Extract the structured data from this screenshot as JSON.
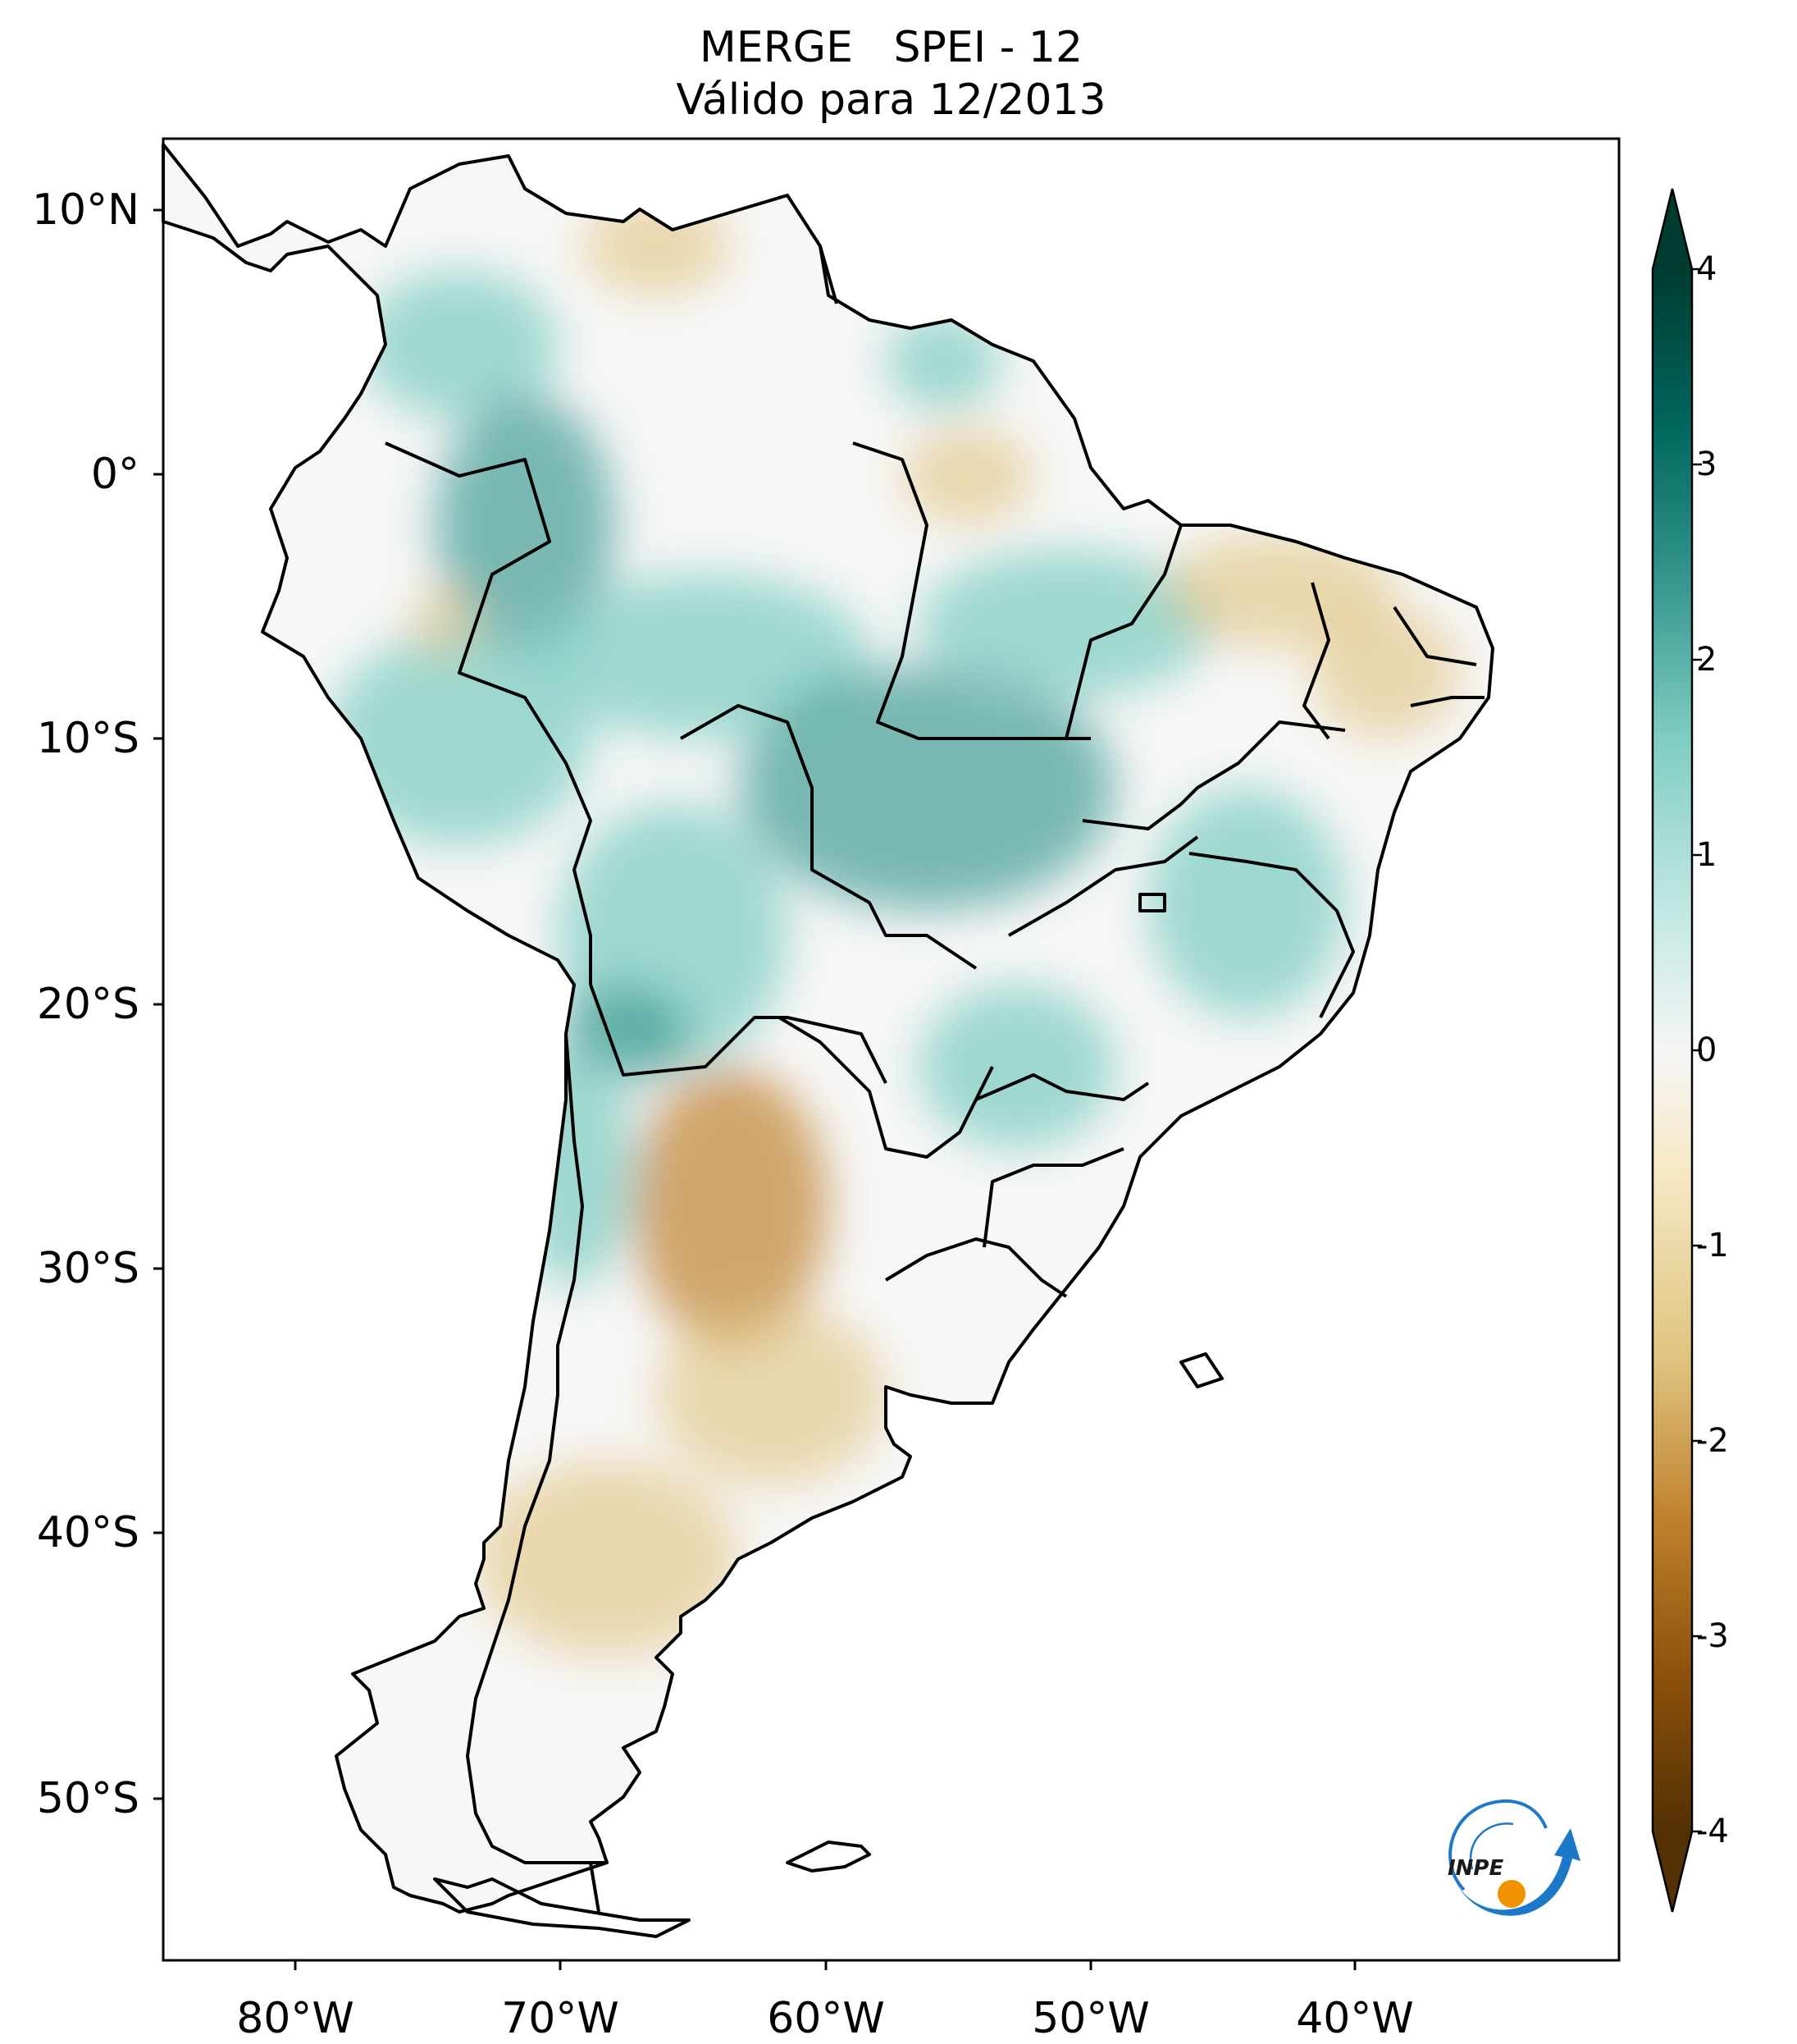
{
  "title": {
    "line1": "MERGE   SPEI - 12",
    "line2": "Válido para 12/2013"
  },
  "map": {
    "region": "South America",
    "variable": "SPEI - 12",
    "lat_ticks": [
      "10°N",
      "0°",
      "10°S",
      "20°S",
      "30°S",
      "40°S",
      "50°S"
    ],
    "lon_ticks": [
      "80°W",
      "70°W",
      "60°W",
      "50°W",
      "40°W"
    ],
    "lat_range": [
      -56,
      12.5
    ],
    "lon_range": [
      -85,
      -30.5
    ]
  },
  "colorbar": {
    "ticks": [
      "4",
      "3",
      "2",
      "1",
      "0",
      "-1",
      "-2",
      "-3",
      "-4"
    ],
    "min": -4,
    "max": 4,
    "extend": "both",
    "colors": {
      "wet_extreme": "#003c30",
      "wet_strong": "#01665e",
      "wet": "#35978f",
      "wet_light": "#80cdc1",
      "wet_pale": "#c7eae5",
      "neutral": "#f5f5f5",
      "dry_pale": "#f6e8c3",
      "dry_light": "#dfc27d",
      "dry": "#bf812d",
      "dry_strong": "#8c510a",
      "dry_extreme": "#543005"
    }
  },
  "logo": {
    "text": "INPE",
    "colors": {
      "arrow": "#1e78c8",
      "dot": "#f39200"
    }
  }
}
